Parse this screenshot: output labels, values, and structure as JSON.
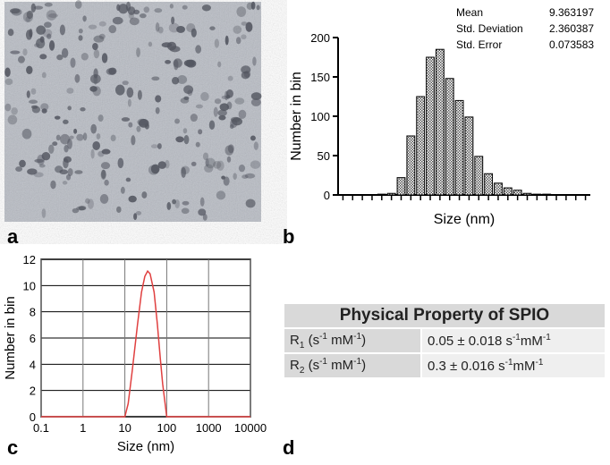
{
  "panel_labels": [
    "a",
    "b",
    "c",
    "d"
  ],
  "chart_data": [
    {
      "type": "bar",
      "xlabel": "Size (nm)",
      "ylabel": "Number in bin",
      "color": "#000000",
      "categories": [
        null,
        null,
        null,
        null,
        null,
        null,
        null,
        null,
        null,
        null,
        null,
        null,
        null,
        null,
        null,
        null,
        null,
        null,
        null,
        null,
        null,
        null,
        null,
        null,
        null,
        null
      ],
      "values": [
        0,
        0,
        0,
        0,
        1,
        2,
        22,
        75,
        125,
        175,
        185,
        148,
        120,
        99,
        49,
        27,
        15,
        9,
        6,
        2,
        1,
        1,
        0,
        0,
        0,
        0
      ],
      "ylim": [
        0,
        200
      ],
      "yticks": [
        0,
        50,
        100,
        150,
        200
      ],
      "stats": [
        {
          "label": "Mean",
          "value": "9.363197"
        },
        {
          "label": "Std. Deviation",
          "value": "2.360387"
        },
        {
          "label": "Std. Error",
          "value": "0.073583"
        }
      ]
    },
    {
      "type": "line",
      "xlabel": "Size (nm)",
      "ylabel": "Number in bin",
      "xscale": "log",
      "grid": true,
      "x": [
        0.1,
        1,
        10,
        12,
        15,
        20,
        25,
        30,
        35,
        40,
        50,
        60,
        70,
        80,
        100,
        1000,
        10000
      ],
      "series": [
        {
          "color": "#e04040",
          "values": [
            0,
            0,
            0,
            1,
            3.5,
            7,
            9.5,
            10.7,
            11.1,
            10.9,
            9.5,
            7,
            4.5,
            2.5,
            0,
            0,
            0
          ]
        }
      ],
      "xlim": [
        0.1,
        10000
      ],
      "xticks": [
        0.1,
        1,
        10,
        100,
        1000,
        10000
      ],
      "ylim": [
        0,
        12
      ],
      "yticks": [
        0,
        2,
        4,
        6,
        8,
        10,
        12
      ]
    }
  ],
  "table": {
    "title": "Physical Property of SPIO",
    "rows": [
      {
        "label": [
          {
            "t": "R"
          },
          {
            "sub": "1"
          },
          {
            "t": " (s"
          },
          {
            "sup": "-1"
          },
          {
            "t": " mM"
          },
          {
            "sup": "-1"
          },
          {
            "t": ")"
          }
        ],
        "value": [
          {
            "t": "0.05 ± 0.018 s"
          },
          {
            "sup": "-1"
          },
          {
            "t": "mM"
          },
          {
            "sup": "-1"
          }
        ]
      },
      {
        "label": [
          {
            "t": "R"
          },
          {
            "sub": "2"
          },
          {
            "t": " (s"
          },
          {
            "sup": "-1"
          },
          {
            "t": " mM"
          },
          {
            "sup": "-1"
          },
          {
            "t": ")"
          }
        ],
        "value": [
          {
            "t": "0.3 ± 0.016 s"
          },
          {
            "sup": "-1"
          },
          {
            "t": "mM"
          },
          {
            "sup": "-1"
          }
        ]
      }
    ]
  }
}
